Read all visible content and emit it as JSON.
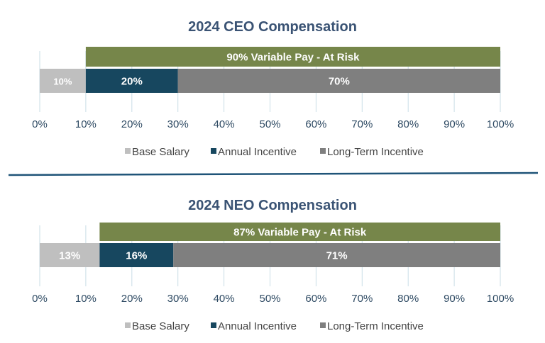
{
  "colors": {
    "base_salary": "#BFBFBF",
    "annual_incentive": "#17475F",
    "long_term_incentive": "#7F7F7F",
    "variable_pay": "#76864A",
    "title": "#3A5374",
    "tick_label": "#2E4A63",
    "grid": "#C9DDE6",
    "divider": "#1F5478"
  },
  "chart_data": [
    {
      "type": "bar",
      "orientation": "horizontal-stacked",
      "title": "2024 CEO Compensation",
      "xlim": [
        0,
        100
      ],
      "x_ticks": [
        "0%",
        "10%",
        "20%",
        "30%",
        "40%",
        "50%",
        "60%",
        "70%",
        "80%",
        "90%",
        "100%"
      ],
      "x_tick_values": [
        0,
        10,
        20,
        30,
        40,
        50,
        60,
        70,
        80,
        90,
        100
      ],
      "banner": {
        "label": "90% Variable Pay - At Risk",
        "start": 10,
        "end": 100
      },
      "series": [
        {
          "name": "Base Salary",
          "value": 10,
          "label": "10%"
        },
        {
          "name": "Annual Incentive",
          "value": 20,
          "label": "20%"
        },
        {
          "name": "Long-Term Incentive",
          "value": 70,
          "label": "70%"
        }
      ],
      "legend": [
        "Base Salary",
        "Annual Incentive",
        "Long-Term Incentive"
      ],
      "legend_position": "bottom"
    },
    {
      "type": "bar",
      "orientation": "horizontal-stacked",
      "title": "2024 NEO Compensation",
      "xlim": [
        0,
        100
      ],
      "x_ticks": [
        "0%",
        "10%",
        "20%",
        "30%",
        "40%",
        "50%",
        "60%",
        "70%",
        "80%",
        "90%",
        "100%"
      ],
      "x_tick_values": [
        0,
        10,
        20,
        30,
        40,
        50,
        60,
        70,
        80,
        90,
        100
      ],
      "banner": {
        "label": "87% Variable Pay - At Risk",
        "start": 13,
        "end": 100
      },
      "series": [
        {
          "name": "Base Salary",
          "value": 13,
          "label": "13%"
        },
        {
          "name": "Annual Incentive",
          "value": 16,
          "label": "16%"
        },
        {
          "name": "Long-Term Incentive",
          "value": 71,
          "label": "71%"
        }
      ],
      "legend": [
        "Base Salary",
        "Annual Incentive",
        "Long-Term Incentive"
      ],
      "legend_position": "bottom"
    }
  ]
}
